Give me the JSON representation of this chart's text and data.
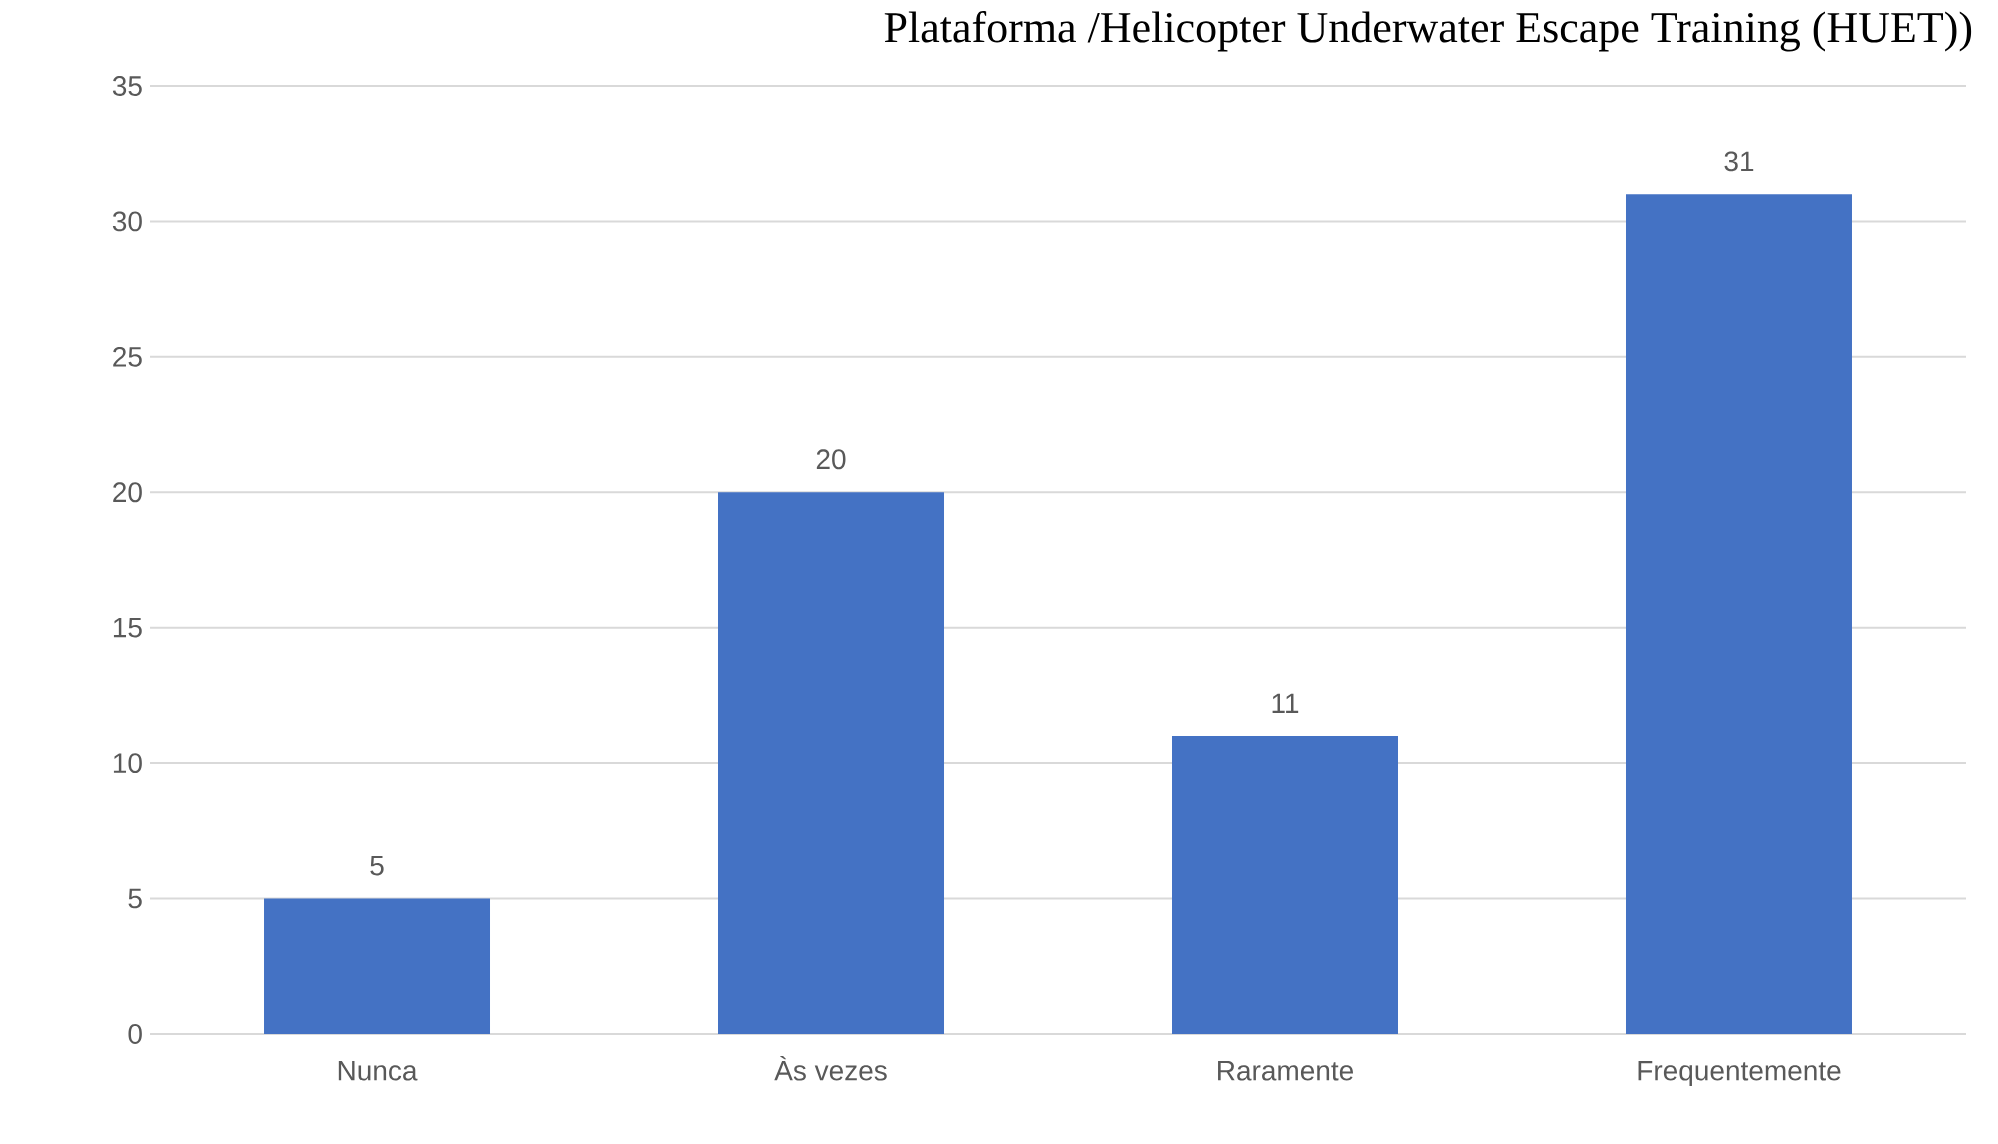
{
  "chart_data": {
    "type": "bar",
    "title": "Plataforma /Helicopter Underwater Escape Training (HUET))",
    "categories": [
      "Nunca",
      "Às vezes",
      "Raramente",
      "Frequentemente"
    ],
    "values": [
      5,
      20,
      11,
      31
    ],
    "color": "#4472c4",
    "ylim": [
      0,
      35
    ],
    "yticks": [
      0,
      5,
      10,
      15,
      20,
      25,
      30,
      35
    ],
    "grid": "y",
    "data_labels": true
  }
}
